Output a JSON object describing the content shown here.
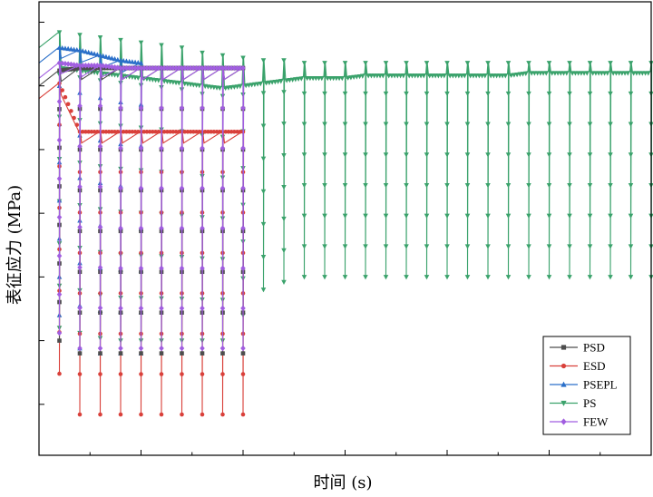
{
  "chart_data": {
    "type": "line",
    "title": "",
    "xlabel": "时间 (s)",
    "ylabel": "表征应力 (MPa)",
    "tick_labels_shown": false,
    "grid": false,
    "legend_position": "bottom-right",
    "cycle_peaks_x": [
      1,
      2,
      3,
      4,
      5,
      6,
      7,
      8,
      9,
      10,
      11,
      12,
      13,
      14,
      15,
      16,
      17,
      18,
      19,
      20,
      21,
      22,
      23,
      24,
      25,
      26,
      27,
      28,
      29,
      30
    ],
    "series": [
      {
        "name": "PSD",
        "color": "#4d4d4d",
        "marker": "square",
        "cycles": 10,
        "upper": [
          91,
          92,
          92,
          92,
          92,
          92,
          92,
          92,
          92,
          92
        ],
        "lower": [
          -15,
          -20,
          -20,
          -20,
          -20,
          -20,
          -20,
          -20,
          -20,
          -20
        ]
      },
      {
        "name": "ESD",
        "color": "#d9403a",
        "marker": "circle",
        "cycles": 10,
        "upper": [
          86,
          67,
          67,
          67,
          67,
          67,
          67,
          67,
          67,
          67
        ],
        "lower": [
          -28,
          -44,
          -44,
          -44,
          -44,
          -44,
          -44,
          -44,
          -44,
          -44
        ]
      },
      {
        "name": "PSEPL",
        "color": "#2a6fc9",
        "marker": "triangle-up",
        "cycles": 5,
        "upper": [
          100,
          99,
          97,
          95,
          94
        ],
        "lower": [
          -5,
          -18,
          -20,
          -20,
          -20
        ]
      },
      {
        "name": "PS",
        "color": "#3aa26b",
        "marker": "triangle-down",
        "cycles": 30,
        "upper": [
          106,
          105,
          104,
          103,
          102,
          101,
          100,
          98,
          97,
          96,
          95,
          95,
          94,
          94,
          94,
          94,
          94,
          94,
          94,
          94,
          94,
          94,
          94,
          94,
          94,
          94,
          94,
          94,
          94,
          94
        ],
        "lower": [
          -10,
          -12,
          -14,
          -15,
          -15,
          -15,
          -15,
          -15,
          -15,
          -5,
          5,
          8,
          10,
          10,
          10,
          10,
          10,
          10,
          10,
          10,
          10,
          10,
          10,
          10,
          10,
          10,
          10,
          10,
          10,
          10
        ],
        "mean": [
          92,
          91,
          90,
          89,
          88,
          87,
          86,
          85,
          84,
          85,
          86,
          87,
          88,
          88,
          88,
          89,
          89,
          89,
          89,
          89,
          89,
          89,
          89,
          90,
          90,
          90,
          90,
          90,
          90,
          90
        ]
      },
      {
        "name": "FEW",
        "color": "#a15ee0",
        "marker": "diamond",
        "cycles": 10,
        "upper": [
          94,
          93,
          93,
          92,
          92,
          92,
          92,
          92,
          92,
          92
        ],
        "lower": [
          -12,
          -18,
          -18,
          -18,
          -18,
          -18,
          -18,
          -18,
          -18,
          -18
        ]
      }
    ]
  }
}
